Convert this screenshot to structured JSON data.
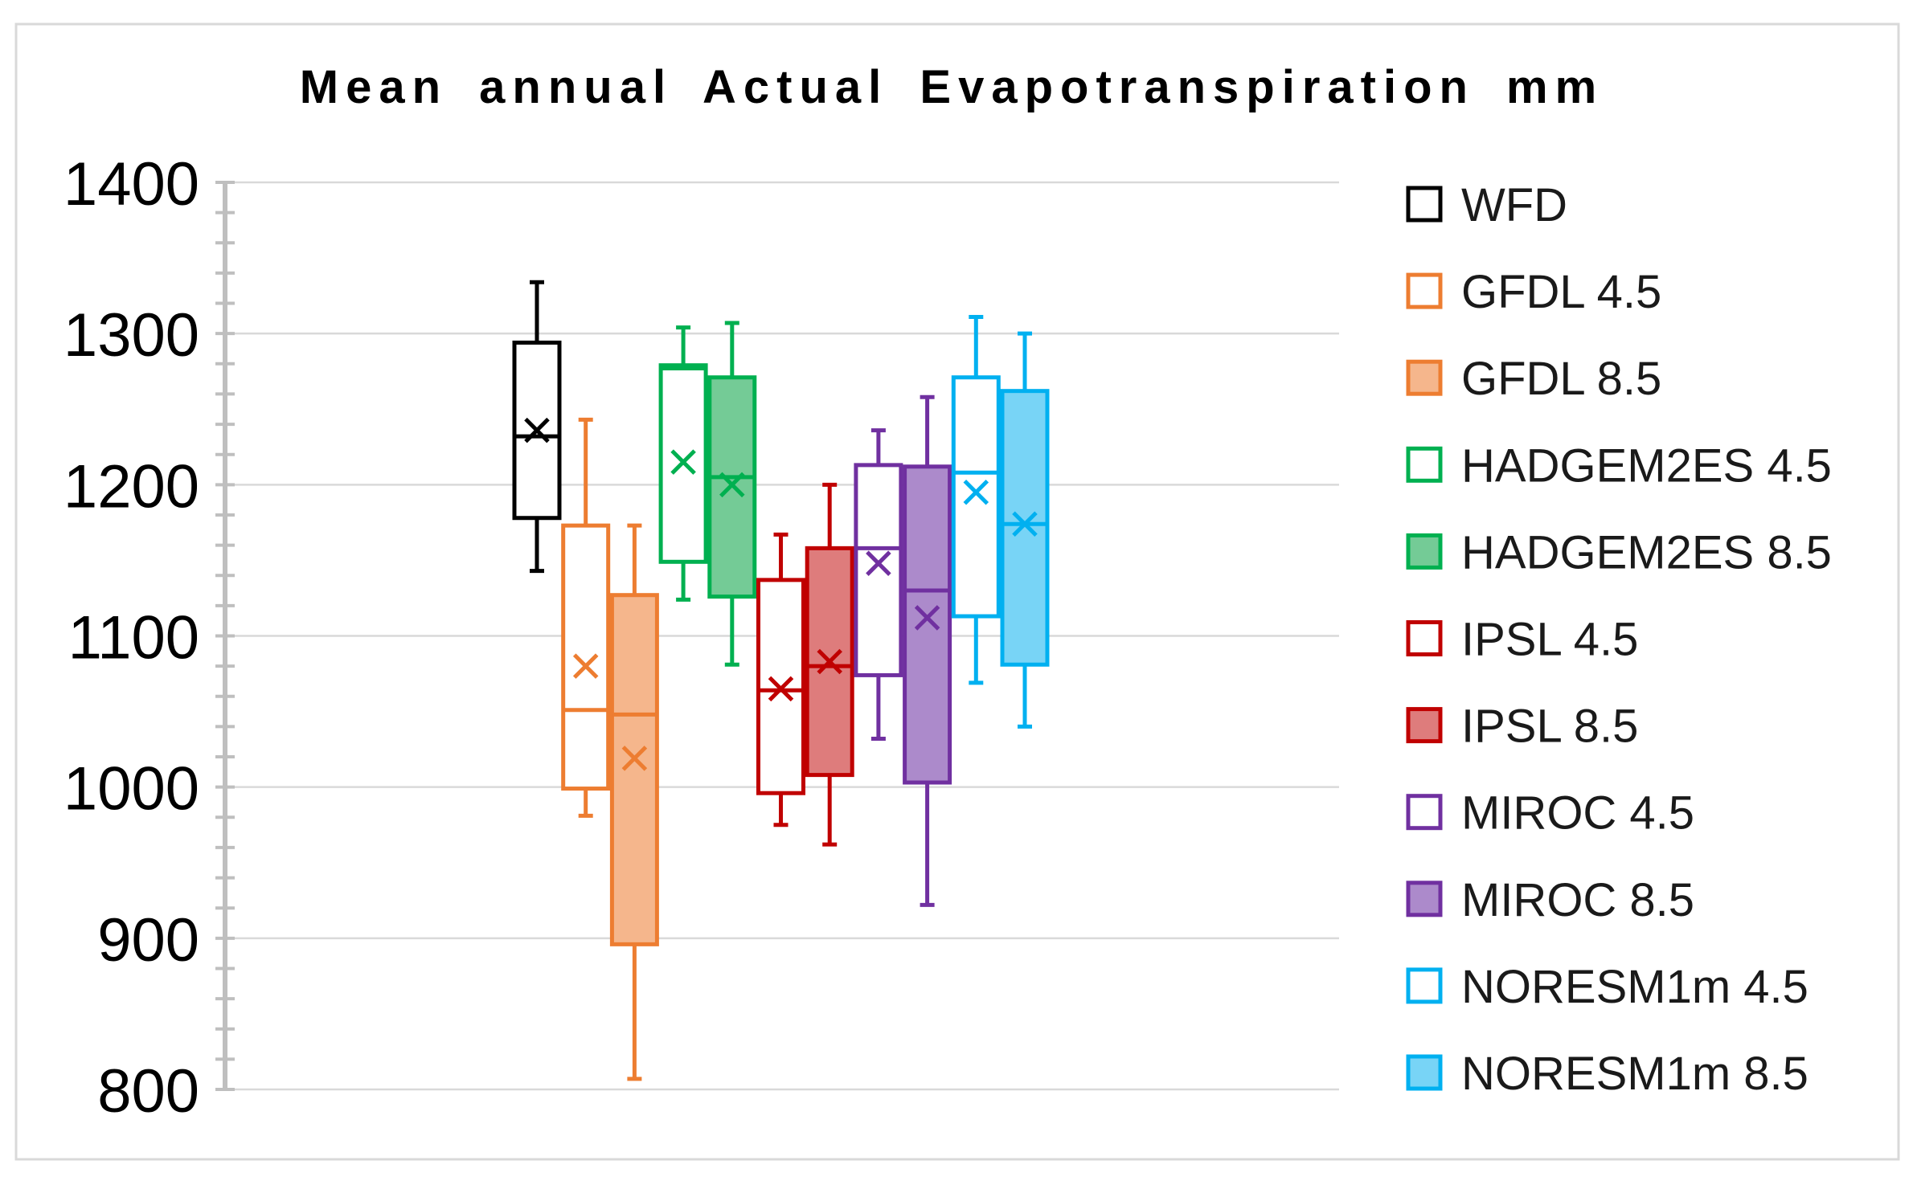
{
  "chart_data": {
    "type": "boxplot",
    "title": "Mean annual Actual Evapotranspiration mm",
    "xlabel": "",
    "ylabel": "",
    "ylim": [
      800,
      1400
    ],
    "y_ticks": [
      800,
      900,
      1000,
      1100,
      1200,
      1300,
      1400
    ],
    "y_minor_step": 20,
    "grid": true,
    "legend_position": "right",
    "series": [
      {
        "name": "WFD",
        "min": 1143,
        "q1": 1178,
        "median": 1232,
        "q3": 1294,
        "max": 1334,
        "mean": 1236,
        "color": "#000000",
        "fill": "#FFFFFF"
      },
      {
        "name": "GFDL 4.5",
        "min": 981,
        "q1": 999,
        "median": 1051,
        "q3": 1173,
        "max": 1243,
        "mean": 1080,
        "color": "#ED7D31",
        "fill": "#FFFFFF"
      },
      {
        "name": "GFDL 8.5",
        "min": 807,
        "q1": 896,
        "median": 1048,
        "q3": 1127,
        "max": 1173,
        "mean": 1019,
        "color": "#ED7D31",
        "fill": "#F5B68C"
      },
      {
        "name": "HADGEM2ES 4.5",
        "min": 1124,
        "q1": 1149,
        "median": 1277,
        "q3": 1279,
        "max": 1304,
        "mean": 1215,
        "color": "#00B050",
        "fill": "#FFFFFF"
      },
      {
        "name": "HADGEM2ES 8.5",
        "min": 1081,
        "q1": 1126,
        "median": 1205,
        "q3": 1271,
        "max": 1307,
        "mean": 1200,
        "color": "#00B050",
        "fill": "#74CB96"
      },
      {
        "name": "IPSL 4.5",
        "min": 975,
        "q1": 996,
        "median": 1064,
        "q3": 1137,
        "max": 1167,
        "mean": 1065,
        "color": "#C00000",
        "fill": "#FFFFFF"
      },
      {
        "name": "IPSL 8.5",
        "min": 962,
        "q1": 1008,
        "median": 1080,
        "q3": 1158,
        "max": 1200,
        "mean": 1083,
        "color": "#C00000",
        "fill": "#DE7C7C"
      },
      {
        "name": "MIROC 4.5",
        "min": 1032,
        "q1": 1074,
        "median": 1158,
        "q3": 1213,
        "max": 1236,
        "mean": 1148,
        "color": "#7030A0",
        "fill": "#FFFFFF"
      },
      {
        "name": "MIROC 8.5",
        "min": 922,
        "q1": 1003,
        "median": 1130,
        "q3": 1212,
        "max": 1258,
        "mean": 1112,
        "color": "#7030A0",
        "fill": "#AC8ACB"
      },
      {
        "name": "NORESM1m 4.5",
        "min": 1069,
        "q1": 1113,
        "median": 1208,
        "q3": 1271,
        "max": 1311,
        "mean": 1195,
        "color": "#00B0F0",
        "fill": "#FFFFFF"
      },
      {
        "name": "NORESM1m 8.5",
        "min": 1040,
        "q1": 1081,
        "median": 1174,
        "q3": 1262,
        "max": 1300,
        "mean": 1174,
        "color": "#00B0F0",
        "fill": "#78D4F6"
      }
    ]
  }
}
